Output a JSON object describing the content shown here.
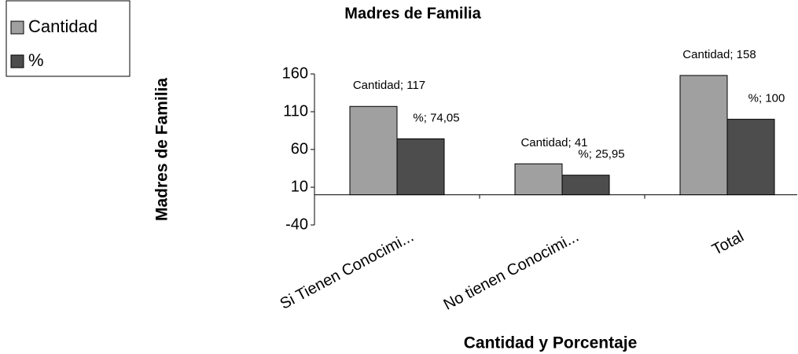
{
  "chart_data": {
    "type": "bar",
    "title": "Madres de Familia",
    "y_label": "Madres de Familia",
    "x_label": "Cantidad y Porcentaje",
    "categories": [
      "Si Tienen Conocimi...",
      "No tienen Conocimi...",
      "Total"
    ],
    "series": [
      {
        "name": "Cantidad",
        "color": "#a0a0a0",
        "values": [
          117,
          41,
          158
        ],
        "value_labels": [
          "Cantidad; 117",
          "Cantidad; 41",
          "Cantidad; 158"
        ]
      },
      {
        "name": "%",
        "color": "#4d4d4d",
        "values": [
          74.05,
          25.95,
          100
        ],
        "value_labels": [
          "%; 74,05",
          "%; 25,95",
          "%; 100"
        ]
      }
    ],
    "ylim": [
      -40,
      160
    ],
    "yticks": [
      -40,
      10,
      60,
      110,
      160
    ],
    "grid": false,
    "legend": "top-left"
  }
}
